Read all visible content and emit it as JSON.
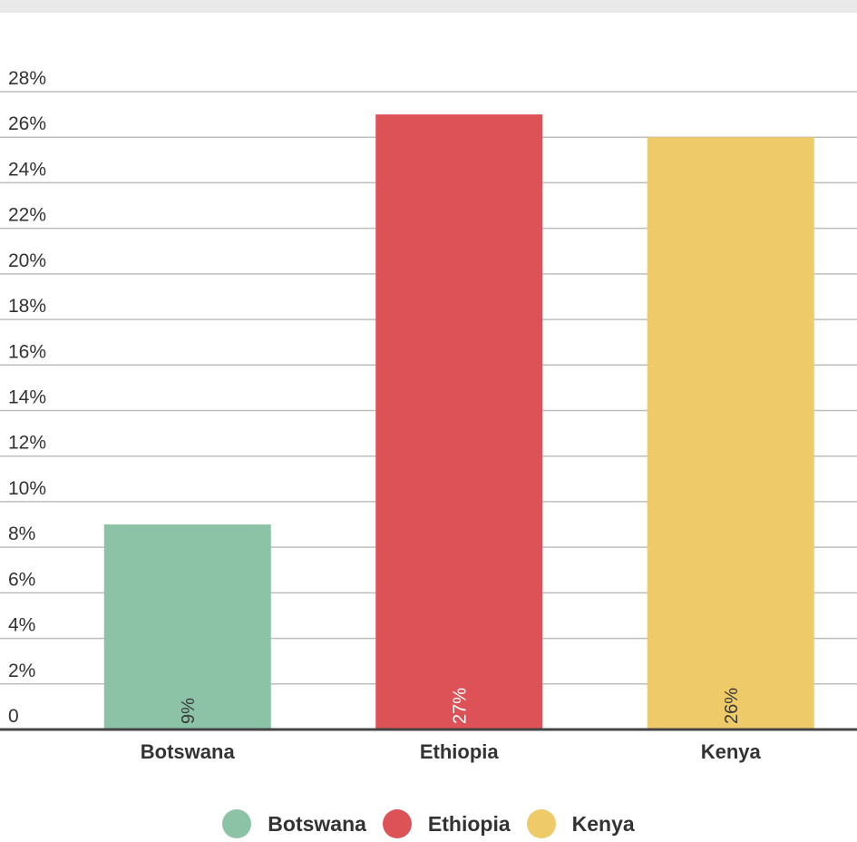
{
  "chart_data": {
    "type": "bar",
    "categories": [
      "Botswana",
      "Ethiopia",
      "Kenya"
    ],
    "values": [
      9,
      27,
      26
    ],
    "data_labels": [
      "9%",
      "27%",
      "26%"
    ],
    "colors": [
      "#8cc3a6",
      "#dc5257",
      "#eeca68"
    ],
    "label_colors": [
      "#3a3a3a",
      "#ffffff",
      "#3a3a3a"
    ],
    "yticks": [
      0,
      2,
      4,
      6,
      8,
      10,
      12,
      14,
      16,
      18,
      20,
      22,
      24,
      26,
      28
    ],
    "ytick_labels": [
      "0",
      "2%",
      "4%",
      "6%",
      "8%",
      "10%",
      "12%",
      "14%",
      "16%",
      "18%",
      "20%",
      "22%",
      "24%",
      "26%",
      "28%"
    ],
    "ylim": [
      0,
      28
    ],
    "grid": true,
    "legend": {
      "position": "bottom",
      "entries": [
        "Botswana",
        "Ethiopia",
        "Kenya"
      ]
    }
  }
}
